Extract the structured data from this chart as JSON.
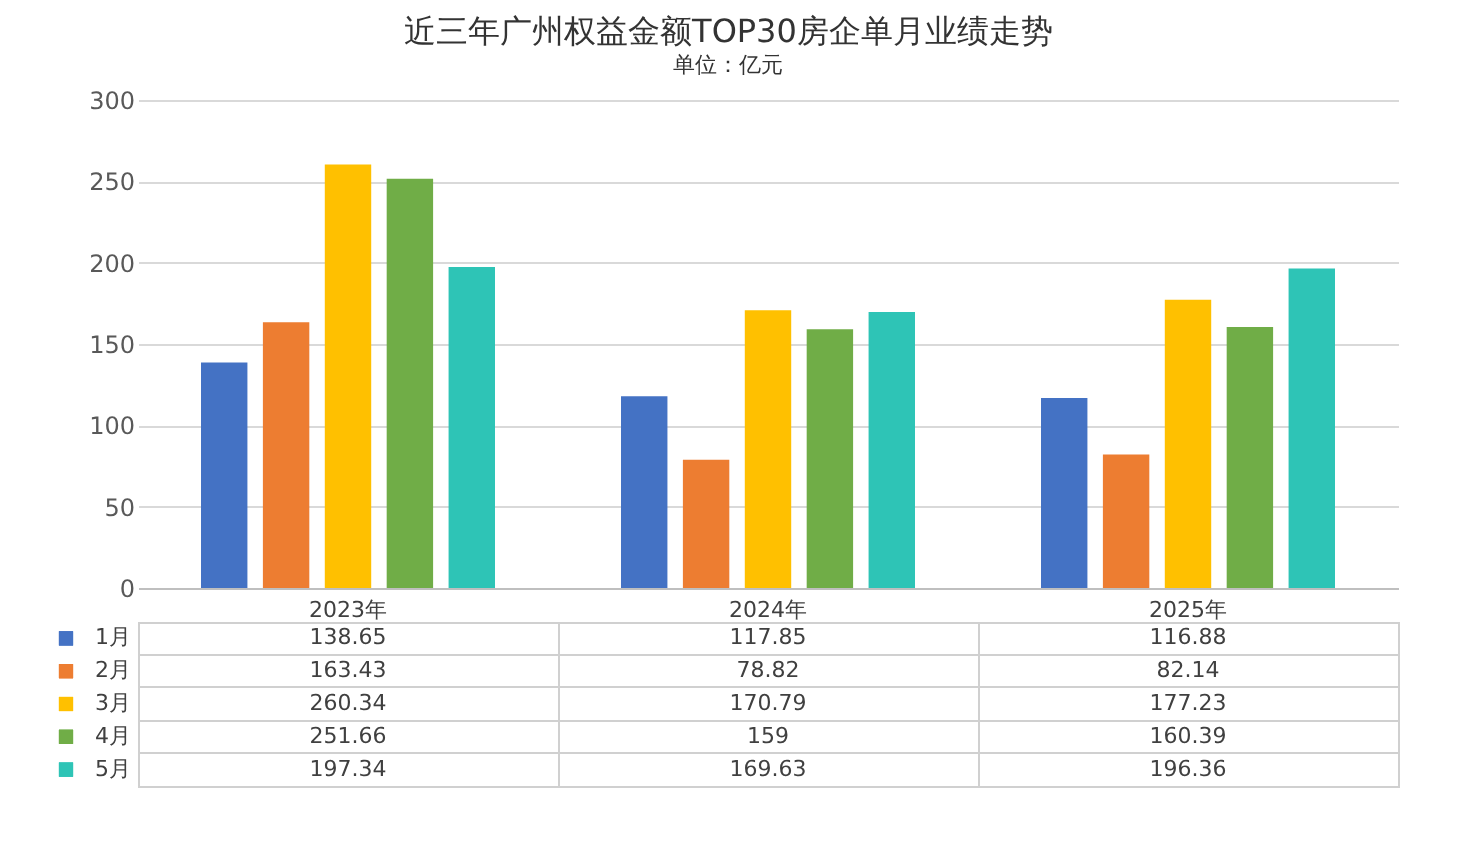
{
  "chart_data": {
    "type": "bar",
    "title": "近三年广州权益金额TOP30房企单月业绩走势",
    "subtitle": "单位：亿元",
    "categories": [
      "2023年",
      "2024年",
      "2025年"
    ],
    "series": [
      {
        "name": "1月",
        "color": "#4472c4",
        "values": [
          138.65,
          117.85,
          116.88
        ]
      },
      {
        "name": "2月",
        "color": "#ed7d31",
        "values": [
          163.43,
          78.82,
          82.14
        ]
      },
      {
        "name": "3月",
        "color": "#ffc000",
        "values": [
          260.34,
          170.79,
          177.23
        ]
      },
      {
        "name": "4月",
        "color": "#70ad47",
        "values": [
          251.66,
          159,
          160.39
        ]
      },
      {
        "name": "5月",
        "color": "#2ec4b6",
        "values": [
          197.34,
          169.63,
          196.36
        ]
      }
    ],
    "ylim": [
      0,
      300
    ],
    "yticks": [
      0,
      50,
      100,
      150,
      200,
      250,
      300
    ],
    "grid": "y",
    "legend": "bottom",
    "data_labels": true
  }
}
